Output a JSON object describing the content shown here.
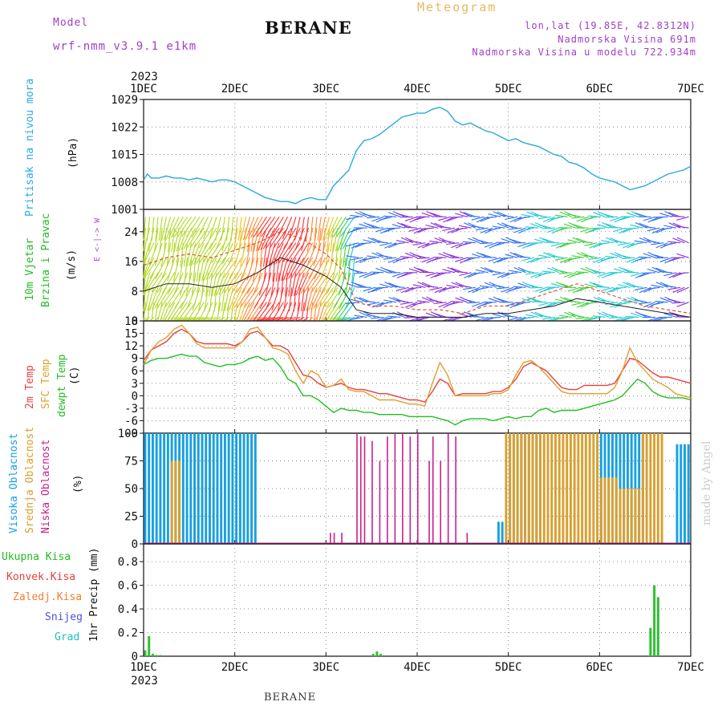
{
  "header": {
    "model_label": "Model",
    "model_name": "wrf-nmm_v3.9.1 e1km",
    "station": "BERANE",
    "product": "Meteogram",
    "lonlat": "lon,lat (19.85E, 42.8312N)",
    "elev": "Nadmorska Visina 691m",
    "elev_model": "Nadmorska Visina u modelu 722.934m"
  },
  "footer": {
    "station": "BERANE",
    "credit": "made by Angel"
  },
  "colors": {
    "pressure": "#2aa9e0",
    "t2m": "#e84040",
    "tsfc": "#e0a030",
    "dewpt": "#20c020",
    "cloud_high": "#18a0e0",
    "cloud_mid": "#d8a030",
    "cloud_low": "#c8208c",
    "precip_total": "#30c030",
    "wind_speed": "#202020",
    "gust": "#e05030"
  },
  "chart_data": {
    "type": "meteogram",
    "x_axis": {
      "start_year": "2023",
      "ticks": [
        "1DEC",
        "2DEC",
        "3DEC",
        "4DEC",
        "5DEC",
        "6DEC",
        "7DEC"
      ],
      "hours_range": [
        0,
        144
      ]
    },
    "panels": [
      {
        "id": "pressure",
        "type": "line",
        "ylabel": [
          "Pritisak na nivou mora",
          "(hPa)"
        ],
        "ylim": [
          1001,
          1029
        ],
        "yticks": [
          1001,
          1008,
          1015,
          1022,
          1029
        ],
        "series": [
          {
            "name": "Pritisak na nivou mora",
            "x": [
              0,
              1,
              2,
              4,
              6,
              8,
              10,
              12,
              14,
              16,
              18,
              20,
              22,
              24,
              26,
              28,
              30,
              32,
              34,
              36,
              38,
              40,
              42,
              44,
              46,
              48,
              50,
              52,
              54,
              56,
              58,
              60,
              62,
              64,
              66,
              68,
              70,
              72,
              74,
              76,
              78,
              80,
              82,
              84,
              86,
              88,
              90,
              92,
              94,
              96,
              98,
              100,
              102,
              104,
              106,
              108,
              110,
              112,
              114,
              116,
              118,
              120,
              122,
              124,
              126,
              128,
              130,
              132,
              134,
              136,
              138,
              140,
              142,
              144
            ],
            "y": [
              1008.5,
              1010,
              1009,
              1009,
              1009.5,
              1009,
              1009,
              1008.5,
              1009,
              1008.5,
              1008,
              1008.5,
              1008.5,
              1008,
              1007,
              1006,
              1005,
              1004,
              1003.5,
              1003,
              1003,
              1002.5,
              1003.5,
              1004,
              1003.5,
              1003.5,
              1007,
              1009,
              1011,
              1016,
              1018.5,
              1019,
              1020,
              1021.5,
              1023,
              1024.5,
              1025,
              1025.5,
              1025.5,
              1026.5,
              1027,
              1026,
              1023.5,
              1022.5,
              1023,
              1022,
              1021,
              1020.5,
              1019.5,
              1018.5,
              1019,
              1018,
              1017.5,
              1017,
              1016,
              1015,
              1014.5,
              1013,
              1012.5,
              1011.5,
              1010,
              1009,
              1008.5,
              1008,
              1007,
              1006,
              1006.5,
              1007,
              1008,
              1009,
              1010,
              1010.5,
              1011,
              1012
            ]
          }
        ]
      },
      {
        "id": "wind",
        "type": "barbs",
        "ylabel": [
          "10m Vjetar",
          "Brzina i Pravac",
          "(m/s)"
        ],
        "compass": "E <-|-> W",
        "ylim": [
          0,
          30
        ],
        "yticks": [
          0,
          8,
          16,
          24
        ],
        "series": [
          {
            "name": "speed",
            "x": [
              0,
              6,
              12,
              18,
              24,
              30,
              36,
              42,
              48,
              52,
              56,
              60,
              66,
              72,
              78,
              84,
              90,
              96,
              102,
              108,
              114,
              120,
              126,
              132,
              138,
              144
            ],
            "y": [
              8,
              10,
              10,
              9,
              10,
              13,
              17,
              15,
              12,
              9,
              3,
              2,
              2,
              1,
              1,
              1,
              2,
              2,
              3,
              4,
              6,
              5,
              4,
              3,
              2,
              1
            ]
          },
          {
            "name": "gust",
            "x": [
              0,
              6,
              12,
              18,
              24,
              30,
              36,
              42,
              48,
              52,
              56,
              60,
              66,
              72,
              78,
              84,
              90,
              96,
              102,
              108,
              114,
              120,
              126,
              132,
              138,
              144
            ],
            "y": [
              15,
              17,
              18,
              17,
              19,
              21,
              24,
              22,
              18,
              14,
              5,
              4,
              4,
              3,
              3,
              2,
              4,
              4,
              6,
              8,
              10,
              8,
              6,
              4,
              3,
              2
            ]
          }
        ]
      },
      {
        "id": "temperature",
        "type": "line",
        "ylabel": [
          "2m Temp",
          "SFC Temp",
          "dewpt Temp",
          "(C)"
        ],
        "ylim": [
          -9,
          18
        ],
        "yticks": [
          -9,
          -6,
          -3,
          0,
          3,
          6,
          9,
          12,
          15,
          18
        ],
        "series": [
          {
            "name": "2m Temp",
            "x": [
              0,
              2,
              4,
              6,
              8,
              10,
              12,
              14,
              16,
              18,
              20,
              22,
              24,
              26,
              28,
              30,
              32,
              34,
              36,
              38,
              40,
              42,
              44,
              46,
              48,
              50,
              52,
              54,
              56,
              58,
              60,
              62,
              64,
              66,
              68,
              70,
              72,
              74,
              76,
              78,
              80,
              82,
              84,
              86,
              88,
              90,
              92,
              94,
              96,
              98,
              100,
              102,
              104,
              106,
              108,
              110,
              112,
              114,
              116,
              118,
              120,
              122,
              124,
              126,
              128,
              130,
              132,
              134,
              136,
              138,
              140,
              142,
              144
            ],
            "y": [
              8.5,
              11,
              12,
              13,
              15,
              16,
              15,
              13,
              12.5,
              12.5,
              12.5,
              12.5,
              12,
              13,
              15,
              15.5,
              14,
              12,
              12,
              11,
              8,
              5,
              4.5,
              3,
              2,
              2.5,
              3,
              2,
              1.5,
              1.5,
              1,
              0.5,
              0.5,
              0,
              -0.5,
              -1,
              -1,
              -1.5,
              1,
              4,
              3,
              0,
              0.5,
              0.5,
              0.5,
              0.5,
              1,
              1,
              2,
              4,
              7,
              8,
              7,
              6,
              4,
              2,
              1.5,
              1.5,
              2.5,
              2.5,
              2.5,
              2.5,
              3,
              6,
              9,
              8.5,
              7,
              5.5,
              4.5,
              4.5,
              4,
              3.5,
              3
            ]
          },
          {
            "name": "SFC Temp",
            "x": [
              0,
              2,
              4,
              6,
              8,
              10,
              12,
              14,
              16,
              18,
              20,
              22,
              24,
              26,
              28,
              30,
              32,
              34,
              36,
              38,
              40,
              42,
              44,
              46,
              48,
              50,
              52,
              54,
              56,
              58,
              60,
              62,
              64,
              66,
              68,
              70,
              72,
              74,
              76,
              78,
              80,
              82,
              84,
              86,
              88,
              90,
              92,
              94,
              96,
              98,
              100,
              102,
              104,
              106,
              108,
              110,
              112,
              114,
              116,
              118,
              120,
              122,
              124,
              126,
              128,
              130,
              132,
              134,
              136,
              138,
              140,
              142,
              144
            ],
            "y": [
              7.5,
              11,
              13,
              14,
              16,
              17,
              15,
              12.5,
              11.5,
              11.5,
              11.5,
              11.5,
              11.5,
              13,
              16,
              16.5,
              14,
              11.5,
              11,
              10,
              6,
              3,
              6,
              5,
              2,
              2.5,
              4,
              1.5,
              1,
              1,
              0,
              -1,
              -1,
              -1,
              -1.5,
              -2,
              -2,
              -2.5,
              3,
              8,
              5,
              0,
              0,
              0,
              0,
              0,
              0.5,
              0.5,
              1.5,
              5,
              8,
              8.5,
              7,
              5,
              3,
              1,
              0.5,
              0.5,
              0.5,
              0.5,
              0.5,
              0.5,
              2,
              6,
              11.5,
              8,
              6,
              4,
              3,
              2,
              0.5,
              0,
              -0.5
            ]
          },
          {
            "name": "dewpt Temp",
            "x": [
              0,
              2,
              4,
              6,
              8,
              10,
              12,
              14,
              16,
              18,
              20,
              22,
              24,
              26,
              28,
              30,
              32,
              34,
              36,
              38,
              40,
              42,
              44,
              46,
              48,
              50,
              52,
              54,
              56,
              58,
              60,
              62,
              64,
              66,
              68,
              70,
              72,
              74,
              76,
              78,
              80,
              82,
              84,
              86,
              88,
              90,
              92,
              94,
              96,
              98,
              100,
              102,
              104,
              106,
              108,
              110,
              112,
              114,
              116,
              118,
              120,
              122,
              124,
              126,
              128,
              130,
              132,
              134,
              136,
              138,
              140,
              142,
              144
            ],
            "y": [
              7.5,
              8.5,
              9,
              9,
              9.5,
              10,
              9.5,
              9.5,
              8,
              7.5,
              7,
              7.5,
              7.5,
              8,
              9,
              9.5,
              8.5,
              9,
              7,
              4,
              3,
              0,
              0,
              -1,
              -2.5,
              -4,
              -3,
              -3.5,
              -3.5,
              -4,
              -4,
              -4.5,
              -4.5,
              -4.5,
              -4.5,
              -5,
              -5,
              -5,
              -5,
              -5.5,
              -6,
              -7,
              -6,
              -5.5,
              -5.5,
              -5.5,
              -6,
              -5.5,
              -5,
              -5.5,
              -5,
              -5,
              -3.5,
              -3,
              -4,
              -3.5,
              -3.5,
              -3.5,
              -3,
              -2.5,
              -2,
              -1.5,
              -1,
              0,
              2,
              4,
              3,
              1,
              0,
              -0.5,
              -0.5,
              -0.5,
              -1
            ]
          }
        ]
      },
      {
        "id": "clouds",
        "type": "bar",
        "ylabel": [
          "Visoka Oblacnost",
          "Srednja Oblacnost",
          "Niska Oblacnost",
          "(%)"
        ],
        "ylim": [
          0,
          100
        ],
        "yticks": [
          0,
          25,
          50,
          75,
          100
        ],
        "series": [
          {
            "name": "Visoka Oblacnost",
            "type": "bar-range",
            "ranges": [
              [
                0,
                30,
                100
              ],
              [
                93,
                96,
                20
              ],
              [
                96,
                105,
                100
              ],
              [
                120,
                132,
                100
              ],
              [
                140,
                144,
                90
              ]
            ]
          },
          {
            "name": "Srednja Oblacnost",
            "type": "bar-range",
            "ranges": [
              [
                7,
                10,
                75
              ],
              [
                95,
                120,
                100
              ],
              [
                120,
                125,
                60
              ],
              [
                125,
                131,
                50
              ],
              [
                131,
                137,
                100
              ]
            ]
          },
          {
            "name": "Niska Oblacnost",
            "x": [
              49,
              50,
              52,
              56,
              57,
              58,
              60,
              62,
              64,
              66,
              68,
              70,
              72,
              75,
              76,
              78,
              80,
              82,
              85
            ],
            "y": [
              10,
              10,
              10,
              100,
              97,
              97,
              93,
              75,
              97,
              100,
              100,
              97,
              100,
              75,
              97,
              75,
              100,
              97,
              10
            ]
          }
        ]
      },
      {
        "id": "precip",
        "type": "bar",
        "ylabel": [
          "Ukupna Kisa",
          "Konvek.Kisa",
          "Zaledj.Kisa",
          "Snijeg",
          "Grad",
          "1hr Precip (mm)"
        ],
        "ylim": [
          0,
          0.95
        ],
        "yticks": [
          0,
          0.2,
          0.4,
          0.6,
          0.8
        ],
        "series": [
          {
            "name": "Ukupna Kisa",
            "x": [
              0,
              1,
              2,
              3,
              4,
              60,
              61,
              62,
              133,
              134,
              135
            ],
            "y": [
              0.05,
              0.17,
              0.02,
              0.01,
              0.01,
              0.02,
              0.04,
              0.02,
              0.24,
              0.6,
              0.5
            ]
          }
        ]
      }
    ]
  }
}
